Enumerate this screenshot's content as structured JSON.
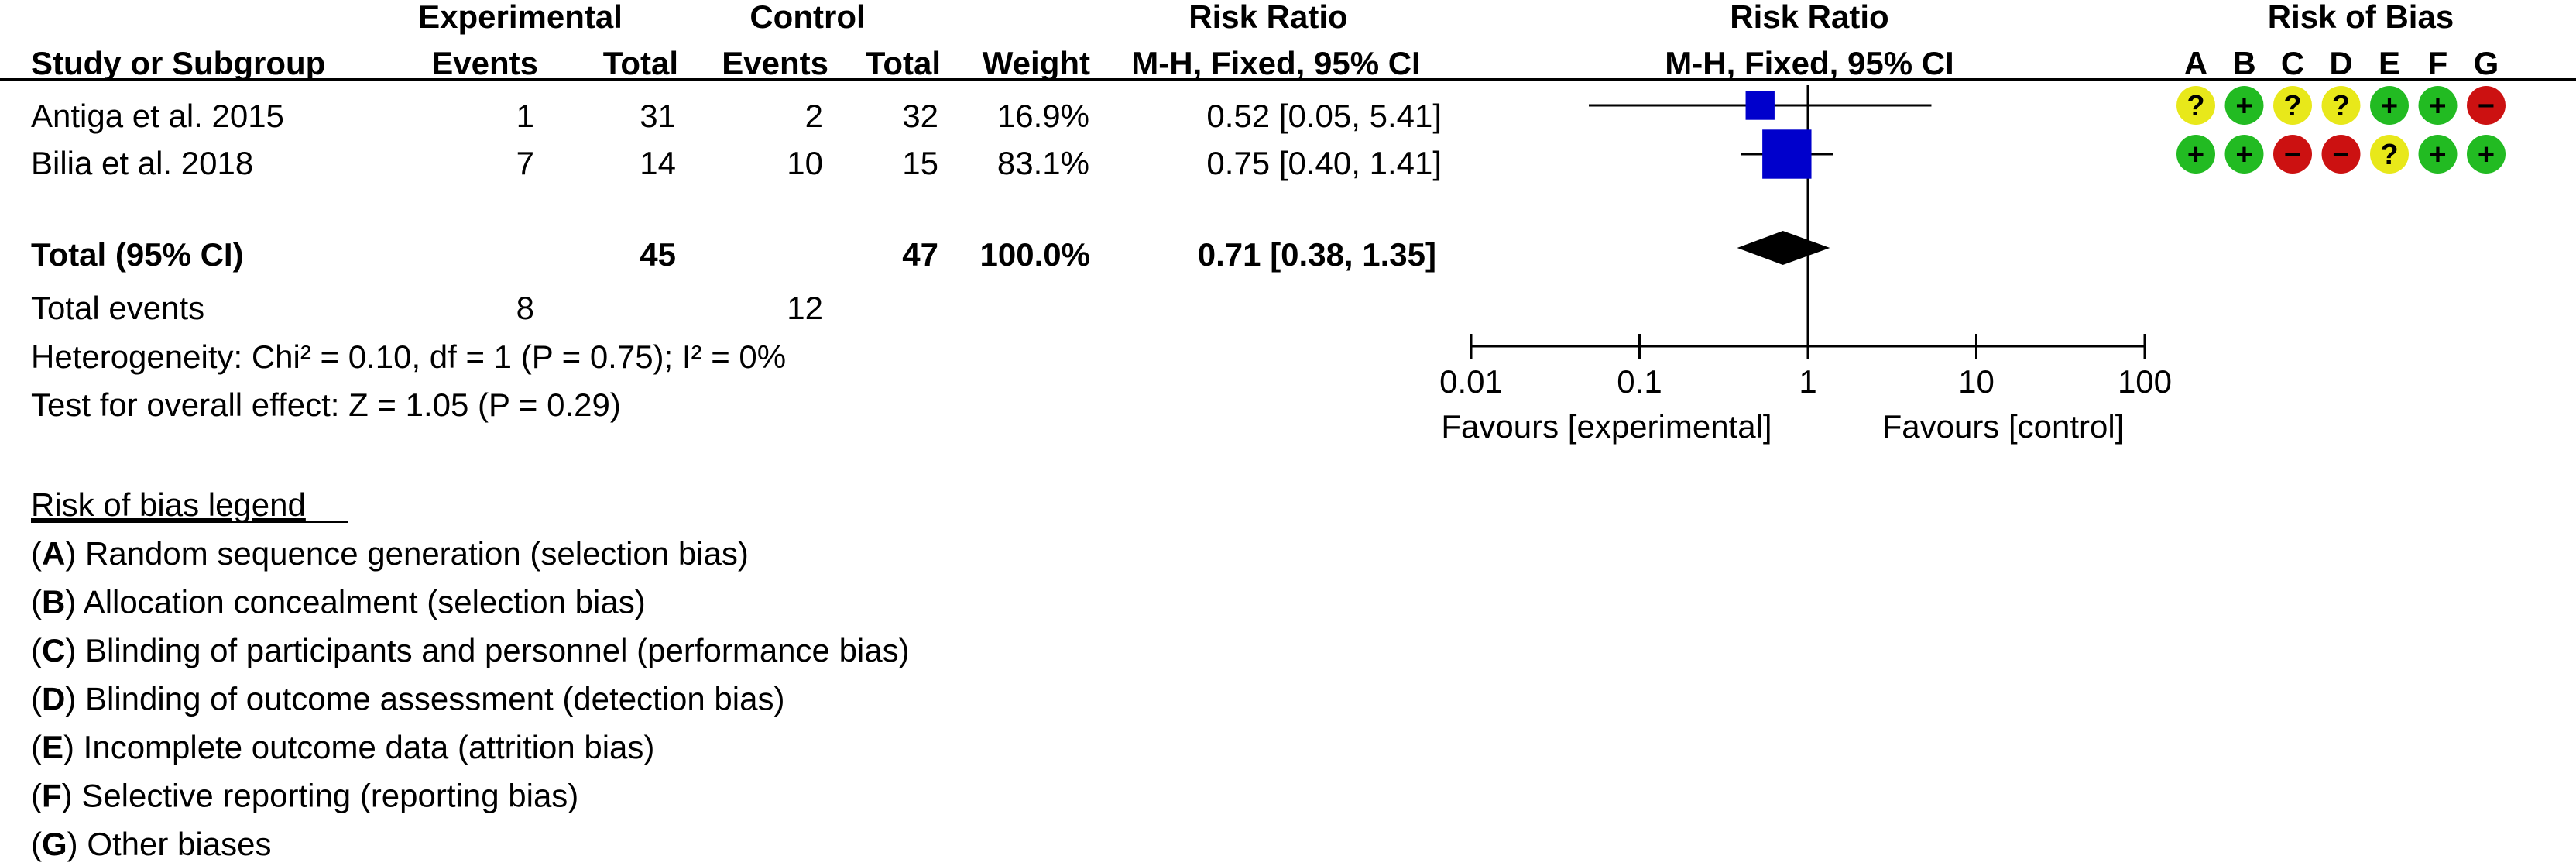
{
  "headers": {
    "experimental": "Experimental",
    "control": "Control",
    "risk_ratio_col": "Risk Ratio",
    "risk_ratio_plot": "Risk Ratio",
    "risk_of_bias": "Risk of Bias",
    "study": "Study or Subgroup",
    "events_exp": "Events",
    "total_exp": "Total",
    "events_ctrl": "Events",
    "total_ctrl": "Total",
    "weight": "Weight",
    "method_col": "M-H, Fixed, 95% CI",
    "method_plot": "M-H, Fixed, 95% CI",
    "bias_letters": [
      "A",
      "B",
      "C",
      "D",
      "E",
      "F",
      "G"
    ]
  },
  "studies": [
    {
      "name": "Antiga et al. 2015",
      "events_exp": "1",
      "total_exp": "31",
      "events_ctrl": "2",
      "total_ctrl": "32",
      "weight": "16.9%",
      "ci_text": "0.52 [0.05, 5.41]",
      "rob": [
        "unclear",
        "low",
        "unclear",
        "unclear",
        "low",
        "low",
        "high"
      ]
    },
    {
      "name": "Bilia et al. 2018",
      "events_exp": "7",
      "total_exp": "14",
      "events_ctrl": "10",
      "total_ctrl": "15",
      "weight": "83.1%",
      "ci_text": "0.75 [0.40, 1.41]",
      "rob": [
        "low",
        "low",
        "high",
        "high",
        "unclear",
        "low",
        "low"
      ]
    }
  ],
  "total": {
    "label": "Total (95% CI)",
    "total_exp": "45",
    "total_ctrl": "47",
    "weight": "100.0%",
    "ci_text": "0.71 [0.38, 1.35]"
  },
  "events": {
    "label": "Total events",
    "exp": "8",
    "ctrl": "12"
  },
  "heterogeneity": "Heterogeneity: Chi² = 0.10, df = 1 (P = 0.75); I² = 0%",
  "overall_effect": "Test for overall effect: Z = 1.05 (P = 0.29)",
  "axis": {
    "favours_left": "Favours [experimental]",
    "favours_right": "Favours [control]"
  },
  "legend": {
    "title": "Risk of bias legend",
    "items": [
      {
        "letter": "A",
        "text": ") Random sequence generation (selection bias)"
      },
      {
        "letter": "B",
        "text": ") Allocation concealment (selection bias)"
      },
      {
        "letter": "C",
        "text": ") Blinding of participants and personnel (performance bias)"
      },
      {
        "letter": "D",
        "text": ") Blinding of outcome assessment (detection bias)"
      },
      {
        "letter": "E",
        "text": ") Incomplete outcome data (attrition bias)"
      },
      {
        "letter": "F",
        "text": ") Selective reporting (reporting bias)"
      },
      {
        "letter": "G",
        "text": ") Other biases"
      }
    ]
  },
  "rob_colors": {
    "low": "#22bb22",
    "unclear": "#e8e81a",
    "high": "#cc1111"
  },
  "rob_symbols": {
    "low": "+",
    "unclear": "?",
    "high": "−"
  },
  "marker_color": "#0000cc",
  "chart_data": {
    "type": "forest",
    "scale": "log",
    "xlim": [
      0.01,
      100
    ],
    "x_ticks": [
      0.01,
      0.1,
      1,
      10,
      100
    ],
    "x_tick_labels": [
      "0.01",
      "0.1",
      "1",
      "10",
      "100"
    ],
    "null_value": 1,
    "studies": [
      {
        "name": "Antiga et al. 2015",
        "estimate": 0.52,
        "lower": 0.05,
        "upper": 5.41,
        "weight": 16.9
      },
      {
        "name": "Bilia et al. 2018",
        "estimate": 0.75,
        "lower": 0.4,
        "upper": 1.41,
        "weight": 83.1
      }
    ],
    "pooled": {
      "estimate": 0.71,
      "lower": 0.38,
      "upper": 1.35
    }
  }
}
